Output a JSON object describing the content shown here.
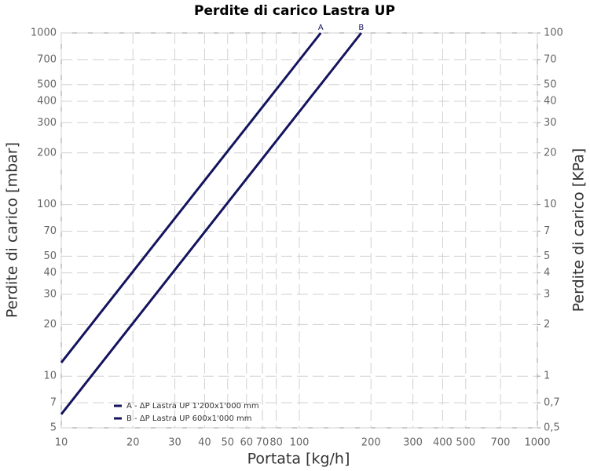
{
  "chart_data": {
    "type": "line",
    "title": "Perdite di carico Lastra UP",
    "xlabel": "Portata [kg/h]",
    "ylabel": "Perdite di carico [mbar]",
    "y2label": "Perdite di carico [KPa]",
    "xscale": "log",
    "yscale": "log",
    "grid": true,
    "legend": "lower left",
    "xlim": [
      10,
      1000
    ],
    "xticks": [
      10,
      20,
      30,
      40,
      50,
      60,
      70,
      80,
      100,
      200,
      300,
      400,
      500,
      700,
      1000
    ],
    "ylim": [
      5,
      1000
    ],
    "yticks": [
      5,
      7,
      10,
      20,
      30,
      40,
      50,
      70,
      100,
      200,
      300,
      400,
      500,
      700,
      1000
    ],
    "y2lim": [
      0.5,
      100
    ],
    "y2ticks": [
      {
        "value": 0.5,
        "label": "0,5"
      },
      {
        "value": 0.7,
        "label": "0,7"
      },
      1,
      2,
      3,
      4,
      5,
      7,
      10,
      20,
      30,
      40,
      50,
      70,
      100
    ],
    "series": [
      {
        "name": "A - ΔP Lastra UP 1'200x1'000 mm",
        "end_label": "A",
        "color": "#14145e",
        "x": [
          10,
          123
        ],
        "values": [
          12,
          1000
        ]
      },
      {
        "name": "B - ΔP Lastra UP 600x1'000 mm",
        "end_label": "B",
        "color": "#14145e",
        "x": [
          10,
          182
        ],
        "values": [
          6,
          1000
        ]
      }
    ]
  }
}
